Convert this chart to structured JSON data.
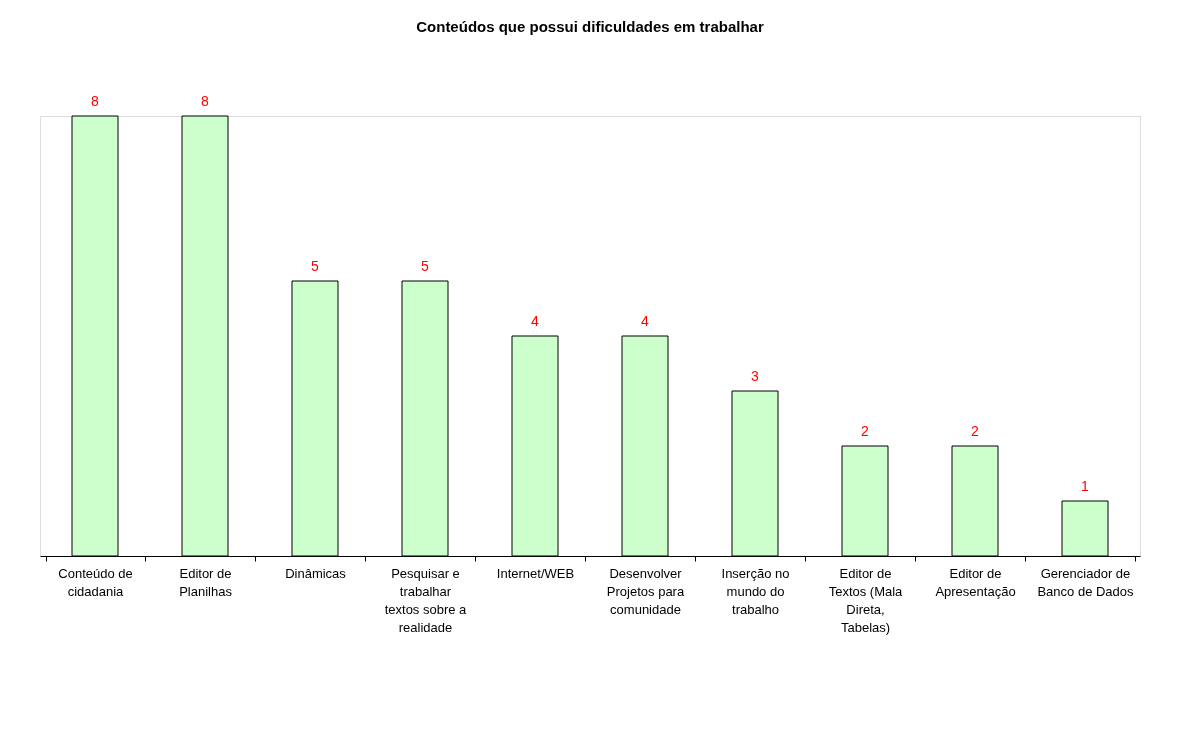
{
  "chart_data": {
    "type": "bar",
    "title": "Conteúdos que possui dificuldades em trabalhar",
    "categories": [
      "Conteúdo de cidadania",
      "Editor de Planilhas",
      "Dinâmicas",
      "Pesquisar e trabalhar textos sobre a realidade",
      "Internet/WEB",
      "Desenvolver Projetos para comunidade",
      "Inserção no mundo do trabalho",
      "Editor de Textos (Mala Direta, Tabelas)",
      "Editor de Apresentação",
      "Gerenciador de Banco de Dados"
    ],
    "values": [
      8,
      8,
      5,
      5,
      4,
      4,
      3,
      2,
      2,
      1
    ],
    "color": "#ccffcc",
    "data_labels": true
  }
}
